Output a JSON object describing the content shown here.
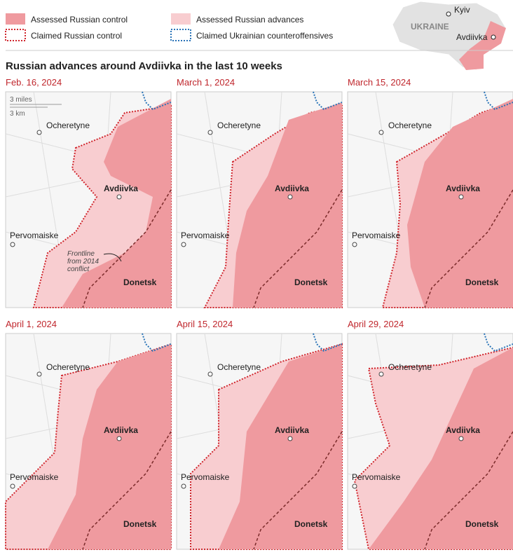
{
  "legend": [
    "Assessed Russian control",
    "Assessed Russian advances",
    "Claimed Russian control",
    "Claimed Ukrainian counteroffensives"
  ],
  "inset": {
    "country": "UKRAINE",
    "cities": [
      "Kyiv",
      "Avdiivka"
    ]
  },
  "title": "Russian advances around Avdiivka in the last 10 weeks",
  "scale": [
    "3 miles",
    "3 km"
  ],
  "annotation": [
    "Frontline",
    "from 2014",
    "conflict"
  ],
  "places": [
    "Ocheretyne",
    "Avdiivka",
    "Pervomaiske",
    "Donetsk"
  ],
  "panels": [
    "Feb. 16, 2024",
    "March 1, 2024",
    "March 15, 2024",
    "April 1, 2024",
    "April 15, 2024",
    "April 29, 2024"
  ]
}
